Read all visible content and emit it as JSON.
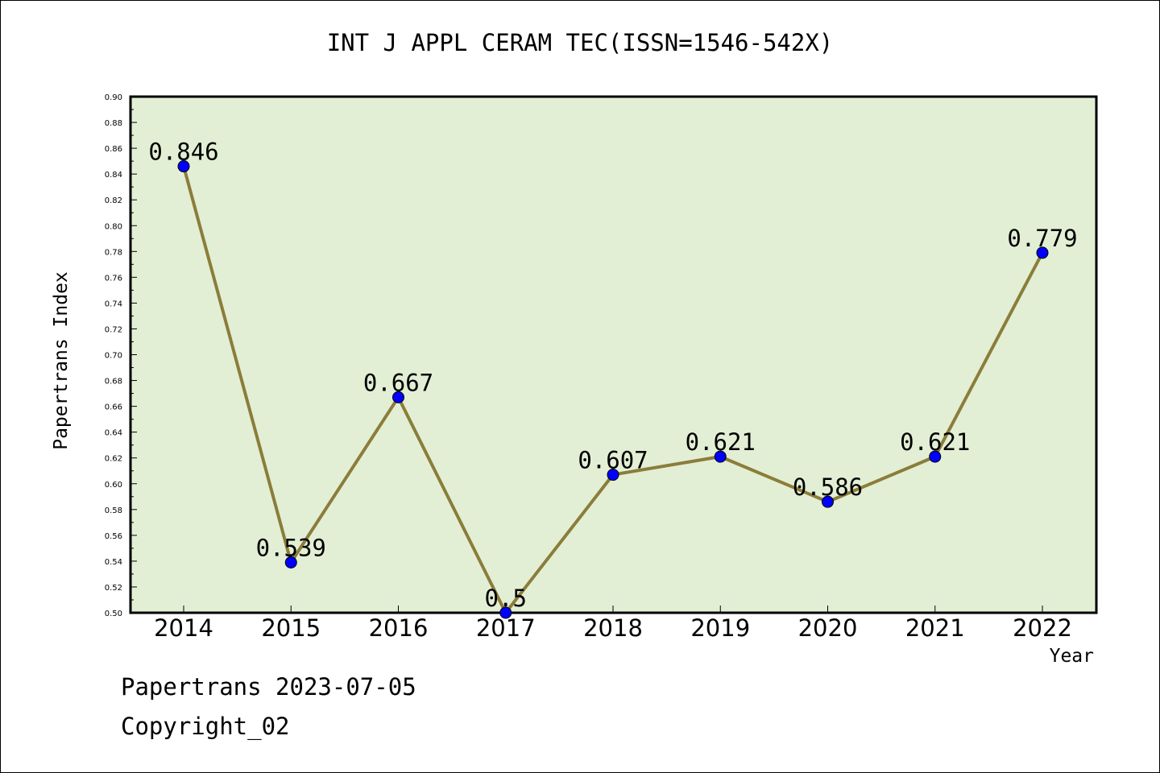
{
  "chart_data": {
    "type": "line",
    "title": "INT J APPL CERAM TEC(ISSN=1546-542X)",
    "xlabel": "Year",
    "ylabel": "Papertrans Index",
    "categories": [
      "2014",
      "2015",
      "2016",
      "2017",
      "2018",
      "2019",
      "2020",
      "2021",
      "2022"
    ],
    "values": [
      0.846,
      0.539,
      0.667,
      0.5,
      0.607,
      0.621,
      0.586,
      0.621,
      0.779
    ],
    "value_labels": [
      "0.846",
      "0.539",
      "0.667",
      "0.5",
      "0.607",
      "0.621",
      "0.586",
      "0.621",
      "0.779"
    ],
    "ylim": [
      0.5,
      0.9
    ],
    "yticks": [
      "0.50",
      "0.52",
      "0.54",
      "0.56",
      "0.58",
      "0.60",
      "0.62",
      "0.64",
      "0.66",
      "0.68",
      "0.70",
      "0.72",
      "0.74",
      "0.76",
      "0.78",
      "0.80",
      "0.82",
      "0.84",
      "0.86",
      "0.88",
      "0.90"
    ],
    "grid": false,
    "colors": {
      "plot_background": "#e2efd5",
      "line": "#8b7d3a",
      "marker": "#0000ff"
    }
  },
  "footer": {
    "line1": "Papertrans 2023-07-05",
    "line2": "Copyright_02"
  }
}
